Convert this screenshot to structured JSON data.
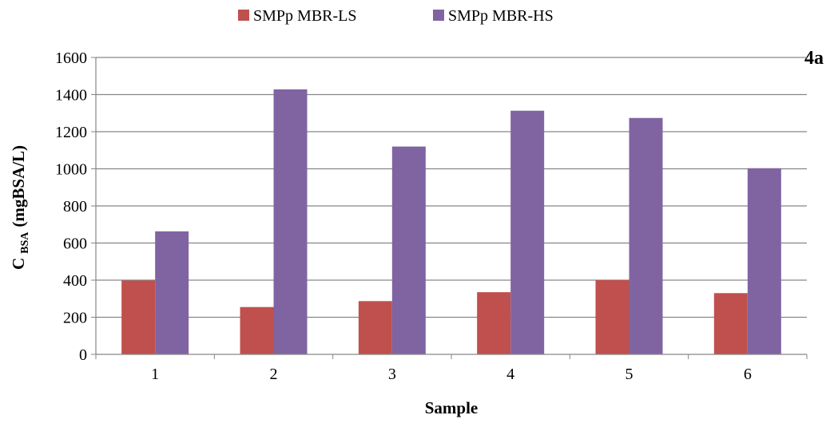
{
  "chart_data": {
    "type": "bar",
    "panel_label": "4a",
    "categories": [
      "1",
      "2",
      "3",
      "4",
      "5",
      "6"
    ],
    "series": [
      {
        "name": "SMPp MBR-LS",
        "color": "#C0504D",
        "values": [
          398,
          255,
          287,
          335,
          400,
          330
        ]
      },
      {
        "name": "SMPp MBR-HS",
        "color": "#8064A2",
        "values": [
          663,
          1428,
          1120,
          1313,
          1274,
          1003
        ]
      }
    ],
    "xlabel": "Sample",
    "ylabel": {
      "main": "C",
      "subscript": "BSA",
      "unit": "(mgBSA/L)"
    },
    "ylim": [
      0,
      1600
    ],
    "yticks": [
      0,
      200,
      400,
      600,
      800,
      1000,
      1200,
      1400,
      1600
    ],
    "grid": true,
    "legend_position": "top-center"
  }
}
